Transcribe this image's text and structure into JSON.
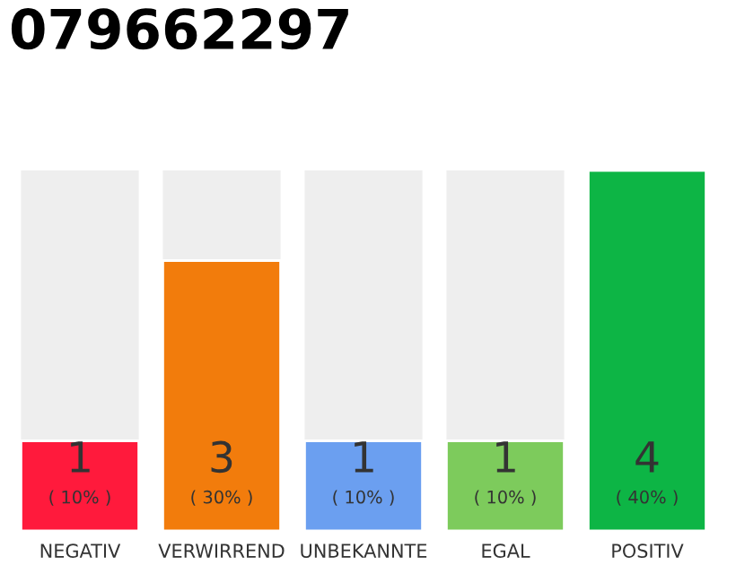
{
  "chart_data": {
    "type": "bar",
    "title": "079662297",
    "categories": [
      "NEGATIV",
      "VERWIRREND",
      "UNBEKANNTE",
      "EGAL",
      "POSITIV"
    ],
    "values": [
      1,
      3,
      1,
      1,
      4
    ],
    "colors": [
      "#ff1a3c",
      "#f27c0c",
      "#6b9ff0",
      "#7dcb5c",
      "#0db545"
    ],
    "data_labels": true,
    "annotations": [
      "( 10% )",
      "( 30% )",
      "( 10% )",
      "( 10% )",
      "( 40% )"
    ],
    "tick_labels": "x",
    "grid": false,
    "legend": false
  }
}
